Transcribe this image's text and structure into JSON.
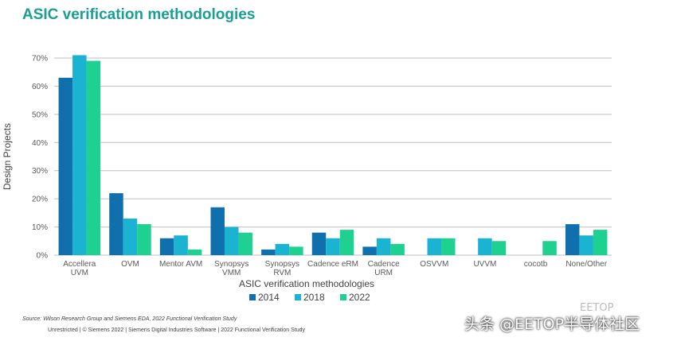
{
  "title": "ASIC verification methodologies",
  "source": "Source:  Wilson Research Group and Siemens EDA, 2022 Functional Verification Study",
  "footer": "Unrestricted | © Siemens 2022 | Siemens Digital Industries Software | 2022 Functional Verification Study",
  "watermark": "头条 @EETOP半导体社区",
  "watermark_logo": "EETOP",
  "colors": {
    "2014": "#1070ae",
    "2018": "#1bb3d2",
    "2022": "#1fd190",
    "grid": "#bfbfbf",
    "title": "#1a9e96"
  },
  "chart_data": {
    "type": "bar",
    "title": "ASIC verification methodologies",
    "xlabel": "ASIC verification methodologies",
    "ylabel": "Design Projects",
    "ylim": [
      0,
      70
    ],
    "yticks": [
      "0%",
      "10%",
      "20%",
      "30%",
      "40%",
      "50%",
      "60%",
      "70%"
    ],
    "categories": [
      [
        "Accellera",
        "UVM"
      ],
      [
        "OVM"
      ],
      [
        "Mentor AVM"
      ],
      [
        "Synopsys",
        "VMM"
      ],
      [
        "Synopsys",
        "RVM"
      ],
      [
        "Cadence eRM"
      ],
      [
        "Cadence",
        "URM"
      ],
      [
        "OSVVM"
      ],
      [
        "UVVM"
      ],
      [
        "cocotb"
      ],
      [
        "None/Other"
      ]
    ],
    "series": [
      {
        "name": "2014",
        "values": [
          63,
          22,
          6,
          17,
          2,
          8,
          3,
          null,
          null,
          null,
          11
        ]
      },
      {
        "name": "2018",
        "values": [
          71,
          13,
          7,
          10,
          4,
          6,
          6,
          6,
          6,
          null,
          7
        ]
      },
      {
        "name": "2022",
        "values": [
          69,
          11,
          2,
          8,
          3,
          9,
          4,
          6,
          5,
          5,
          9
        ]
      }
    ],
    "grid": true,
    "legend": "bottom"
  }
}
